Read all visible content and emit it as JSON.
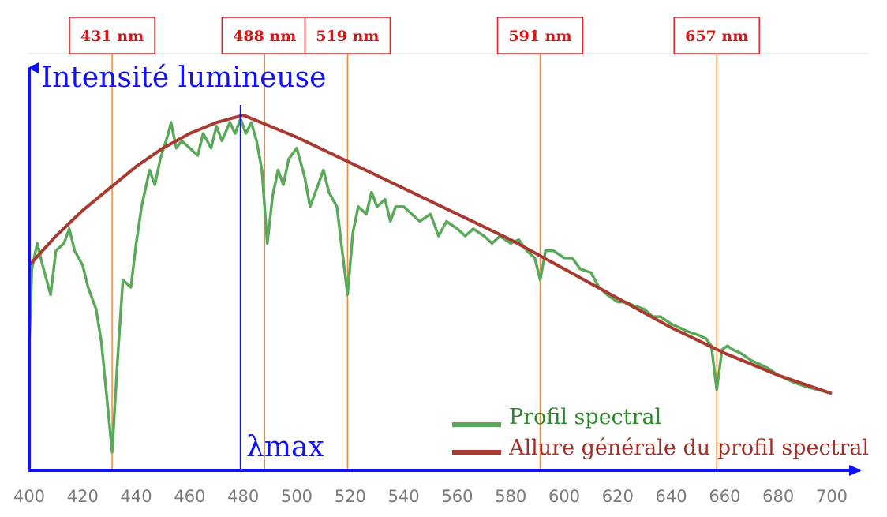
{
  "chart_data": {
    "type": "line",
    "title": "",
    "ylabel": "Intensité lumineuse",
    "xlim": [
      400,
      700
    ],
    "x_ticks": [
      400,
      420,
      440,
      460,
      480,
      500,
      520,
      540,
      560,
      580,
      600,
      620,
      640,
      660,
      680,
      700
    ],
    "ylim": [
      0,
      1
    ],
    "grid": false,
    "legend_placement": "bottom-right",
    "peak_label": "λmax",
    "peak_x": 479,
    "annotations": [
      {
        "label": "431 nm",
        "x": 431
      },
      {
        "label": "488 nm",
        "x": 488
      },
      {
        "label": "519 nm",
        "x": 519
      },
      {
        "label": "591 nm",
        "x": 591
      },
      {
        "label": "657 nm",
        "x": 657
      }
    ],
    "series": [
      {
        "name": "Profil spectral",
        "color": "#5aa85a",
        "x": [
          400,
          401,
          403,
          405,
          408,
          410,
          413,
          415,
          417,
          420,
          422,
          425,
          427,
          429,
          431,
          433,
          435,
          438,
          440,
          442,
          445,
          447,
          449,
          452,
          453,
          455,
          457,
          460,
          463,
          465,
          468,
          470,
          472,
          475,
          477,
          479,
          481,
          483,
          485,
          487,
          489,
          491,
          493,
          495,
          497,
          500,
          503,
          505,
          508,
          510,
          512,
          515,
          517,
          519,
          521,
          523,
          526,
          528,
          530,
          533,
          535,
          537,
          540,
          543,
          546,
          550,
          553,
          556,
          560,
          563,
          566,
          570,
          573,
          576,
          580,
          583,
          586,
          589,
          591,
          593,
          596,
          600,
          603,
          606,
          610,
          613,
          616,
          620,
          623,
          626,
          630,
          633,
          636,
          640,
          643,
          646,
          650,
          653,
          655,
          657,
          659,
          661,
          663,
          666,
          670,
          673,
          676,
          680,
          683,
          686,
          690,
          695,
          700
        ],
        "values": [
          0.34,
          0.55,
          0.62,
          0.56,
          0.48,
          0.6,
          0.62,
          0.66,
          0.6,
          0.56,
          0.5,
          0.44,
          0.35,
          0.2,
          0.05,
          0.3,
          0.52,
          0.5,
          0.62,
          0.72,
          0.82,
          0.78,
          0.85,
          0.92,
          0.95,
          0.88,
          0.9,
          0.88,
          0.86,
          0.92,
          0.88,
          0.94,
          0.9,
          0.95,
          0.92,
          0.96,
          0.92,
          0.95,
          0.9,
          0.82,
          0.62,
          0.75,
          0.82,
          0.78,
          0.85,
          0.88,
          0.8,
          0.72,
          0.78,
          0.82,
          0.76,
          0.72,
          0.6,
          0.48,
          0.65,
          0.72,
          0.7,
          0.76,
          0.72,
          0.74,
          0.68,
          0.72,
          0.72,
          0.7,
          0.68,
          0.7,
          0.64,
          0.68,
          0.66,
          0.64,
          0.66,
          0.64,
          0.62,
          0.64,
          0.62,
          0.63,
          0.6,
          0.58,
          0.52,
          0.6,
          0.6,
          0.58,
          0.58,
          0.55,
          0.54,
          0.5,
          0.48,
          0.46,
          0.46,
          0.45,
          0.44,
          0.42,
          0.42,
          0.4,
          0.39,
          0.38,
          0.37,
          0.36,
          0.34,
          0.22,
          0.33,
          0.34,
          0.33,
          0.32,
          0.3,
          0.29,
          0.28,
          0.26,
          0.25,
          0.24,
          0.23,
          0.22,
          0.21
        ]
      },
      {
        "name": "Allure générale du profil spectral",
        "color": "#a83a30",
        "x": [
          400,
          410,
          420,
          430,
          440,
          450,
          460,
          470,
          480,
          490,
          500,
          520,
          540,
          560,
          580,
          600,
          620,
          640,
          660,
          680,
          700
        ],
        "values": [
          0.56,
          0.64,
          0.71,
          0.77,
          0.83,
          0.88,
          0.92,
          0.95,
          0.97,
          0.94,
          0.91,
          0.84,
          0.77,
          0.7,
          0.63,
          0.55,
          0.47,
          0.39,
          0.32,
          0.26,
          0.21
        ]
      }
    ]
  }
}
